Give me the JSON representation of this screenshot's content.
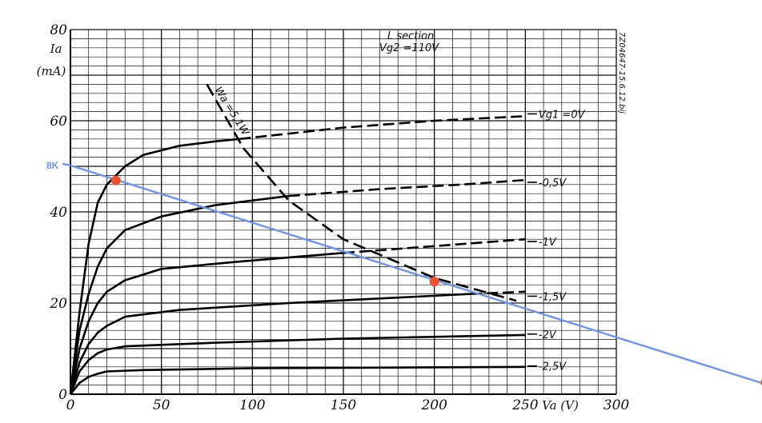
{
  "chart_data": {
    "type": "line",
    "title": "",
    "note_lines": [
      "L section",
      "Vg2 =110V"
    ],
    "side_code": "7Z04647-15.6.12.bij",
    "y_label_lines": [
      "Ia",
      "(mA)"
    ],
    "x_label": "Va (V)",
    "xlim": [
      0,
      300
    ],
    "ylim": [
      0,
      80
    ],
    "x_ticks": [
      "0",
      "50",
      "100",
      "150",
      "200",
      "250",
      "300"
    ],
    "y_ticks": [
      "0",
      "20",
      "40",
      "60",
      "80"
    ],
    "grid": true,
    "series": [
      {
        "name": "Vg1 =0V",
        "label": "Vg1 =0V",
        "solid": [
          [
            0,
            0
          ],
          [
            5,
            18
          ],
          [
            10,
            33
          ],
          [
            15,
            42
          ],
          [
            20,
            46
          ],
          [
            30,
            50
          ],
          [
            40,
            52.5
          ],
          [
            60,
            54.5
          ],
          [
            80,
            55.5
          ],
          [
            93,
            56
          ]
        ],
        "dashed": [
          [
            93,
            56
          ],
          [
            150,
            58.5
          ],
          [
            200,
            60
          ],
          [
            250,
            61
          ]
        ]
      },
      {
        "name": "-0,5V",
        "label": "-0,5V",
        "solid": [
          [
            0,
            0
          ],
          [
            5,
            14
          ],
          [
            10,
            22
          ],
          [
            15,
            28
          ],
          [
            20,
            32
          ],
          [
            30,
            36
          ],
          [
            50,
            39
          ],
          [
            80,
            41.5
          ],
          [
            120,
            43.5
          ]
        ],
        "dashed": [
          [
            120,
            43.5
          ],
          [
            170,
            45
          ],
          [
            215,
            46
          ],
          [
            250,
            47
          ]
        ]
      },
      {
        "name": "-1V",
        "label": "-1V",
        "solid": [
          [
            0,
            0
          ],
          [
            5,
            10
          ],
          [
            10,
            16
          ],
          [
            15,
            20
          ],
          [
            20,
            22.5
          ],
          [
            30,
            25
          ],
          [
            50,
            27.5
          ],
          [
            90,
            29
          ],
          [
            150,
            31
          ]
        ],
        "dashed": [
          [
            150,
            31
          ],
          [
            200,
            32.5
          ],
          [
            250,
            34
          ]
        ]
      },
      {
        "name": "-1,5V",
        "label": "-1,5V",
        "solid": [
          [
            0,
            0
          ],
          [
            5,
            7
          ],
          [
            10,
            11
          ],
          [
            15,
            13.5
          ],
          [
            20,
            15
          ],
          [
            30,
            17
          ],
          [
            60,
            18.5
          ],
          [
            120,
            20
          ],
          [
            220,
            22
          ]
        ],
        "dashed": [
          [
            220,
            22
          ],
          [
            250,
            22.5
          ]
        ]
      },
      {
        "name": "-2V",
        "label": "-2V",
        "solid": [
          [
            0,
            0
          ],
          [
            5,
            5
          ],
          [
            10,
            7.5
          ],
          [
            15,
            9
          ],
          [
            20,
            9.8
          ],
          [
            30,
            10.5
          ],
          [
            80,
            11.3
          ],
          [
            150,
            12.2
          ],
          [
            250,
            13
          ]
        ],
        "dashed": []
      },
      {
        "name": "-2,5V",
        "label": "-2,5V",
        "solid": [
          [
            0,
            0
          ],
          [
            5,
            2.5
          ],
          [
            10,
            3.8
          ],
          [
            15,
            4.5
          ],
          [
            20,
            5
          ],
          [
            40,
            5.3
          ],
          [
            100,
            5.7
          ],
          [
            250,
            6
          ]
        ],
        "dashed": []
      }
    ],
    "dissipation_curve": {
      "label": "Wa =5,1W",
      "points": [
        [
          75,
          68
        ],
        [
          95,
          54
        ],
        [
          120,
          42.5
        ],
        [
          150,
          34
        ],
        [
          200,
          25.5
        ],
        [
          245,
          20.5
        ]
      ]
    },
    "load_line": {
      "label": "8K",
      "color": "#6d95f0",
      "points": [
        [
          0,
          50.2
        ],
        [
          300,
          12.5
        ]
      ],
      "extends_to_x": 382
    },
    "markers": {
      "color": "#f2512b",
      "points": [
        [
          25,
          46.9
        ],
        [
          200,
          24.7
        ],
        [
          382,
          2.6
        ]
      ]
    }
  }
}
